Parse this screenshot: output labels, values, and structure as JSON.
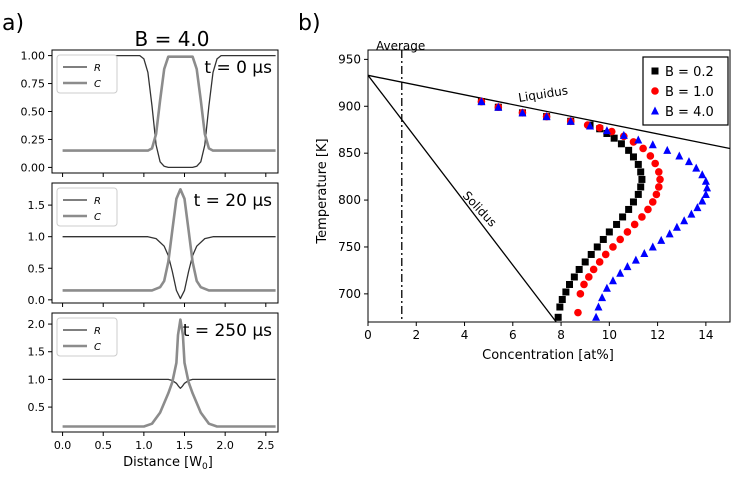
{
  "panel_a": {
    "label": "a)",
    "title": "B = 4.0",
    "xlabel": "Distance [W",
    "xlabel_sub": "0",
    "xlabel_end": "]",
    "x_ticks": [
      "0.0",
      "0.5",
      "1.0",
      "1.5",
      "2.0",
      "2.5"
    ],
    "x_tick_values": [
      0.0,
      0.5,
      1.0,
      1.5,
      2.0,
      2.5
    ],
    "xlim": [
      -0.13,
      2.65
    ]
  },
  "panel_b": {
    "label": "b)",
    "average_label": "Average",
    "liquidus_label": "Liquidus",
    "solidus_label": "Solidus",
    "xlabel": "Concentration [at%]",
    "ylabel": "Temperature [K]"
  },
  "colors": {
    "R_line": "#333333",
    "C_line": "#8c8c8c",
    "B02": "#000000",
    "B10": "#ff0000",
    "B40": "#0000ff"
  },
  "chart_data": [
    {
      "type": "line",
      "title": "t = 0 µs",
      "legend": [
        "R",
        "C"
      ],
      "ylim": [
        -0.05,
        1.05
      ],
      "y_ticks": [
        "0.00",
        "0.25",
        "0.50",
        "0.75",
        "1.00"
      ],
      "y_tick_values": [
        0,
        0.25,
        0.5,
        0.75,
        1.0
      ],
      "series": [
        {
          "name": "R",
          "x": [
            0,
            0.95,
            1.0,
            1.05,
            1.1,
            1.15,
            1.2,
            1.25,
            1.3,
            1.6,
            1.65,
            1.7,
            1.75,
            1.8,
            1.85,
            1.9,
            1.95,
            2.62
          ],
          "y": [
            1.0,
            1.0,
            0.97,
            0.85,
            0.55,
            0.2,
            0.05,
            0.01,
            0.0,
            0.0,
            0.01,
            0.05,
            0.2,
            0.55,
            0.85,
            0.97,
            1.0,
            1.0
          ]
        },
        {
          "name": "C",
          "x": [
            0,
            1.05,
            1.1,
            1.15,
            1.2,
            1.25,
            1.3,
            1.6,
            1.65,
            1.7,
            1.75,
            1.8,
            1.85,
            2.62
          ],
          "y": [
            0.15,
            0.15,
            0.17,
            0.3,
            0.6,
            0.88,
            0.99,
            0.99,
            0.88,
            0.6,
            0.3,
            0.17,
            0.15,
            0.15
          ]
        }
      ]
    },
    {
      "type": "line",
      "title": "t = 20 µs",
      "legend": [
        "R",
        "C"
      ],
      "ylim": [
        -0.05,
        1.85
      ],
      "y_ticks": [
        "0.0",
        "0.5",
        "1.0",
        "1.5"
      ],
      "y_tick_values": [
        0,
        0.5,
        1.0,
        1.5
      ],
      "series": [
        {
          "name": "R",
          "x": [
            0,
            1.05,
            1.15,
            1.25,
            1.3,
            1.35,
            1.4,
            1.45,
            1.5,
            1.55,
            1.6,
            1.65,
            1.75,
            1.85,
            2.62
          ],
          "y": [
            1.0,
            1.0,
            0.97,
            0.85,
            0.7,
            0.45,
            0.15,
            0.02,
            0.15,
            0.45,
            0.7,
            0.85,
            0.97,
            1.0,
            1.0
          ]
        },
        {
          "name": "C",
          "x": [
            0,
            1.1,
            1.2,
            1.25,
            1.3,
            1.35,
            1.4,
            1.45,
            1.5,
            1.55,
            1.6,
            1.65,
            1.7,
            1.8,
            2.62
          ],
          "y": [
            0.15,
            0.15,
            0.2,
            0.3,
            0.6,
            1.1,
            1.6,
            1.75,
            1.6,
            1.1,
            0.6,
            0.3,
            0.2,
            0.15,
            0.15
          ]
        }
      ]
    },
    {
      "type": "line",
      "title": "t = 250 µs",
      "legend": [
        "R",
        "C"
      ],
      "ylim": [
        0.05,
        2.2
      ],
      "y_ticks": [
        "0.5",
        "1.0",
        "1.5",
        "2.0"
      ],
      "y_tick_values": [
        0.5,
        1.0,
        1.5,
        2.0
      ],
      "series": [
        {
          "name": "R",
          "x": [
            0,
            1.3,
            1.35,
            1.4,
            1.43,
            1.45,
            1.47,
            1.5,
            1.55,
            1.6,
            2.62
          ],
          "y": [
            1.0,
            1.0,
            0.98,
            0.93,
            0.87,
            0.84,
            0.87,
            0.93,
            0.98,
            1.0,
            1.0
          ]
        },
        {
          "name": "C",
          "x": [
            0,
            1.0,
            1.1,
            1.2,
            1.3,
            1.35,
            1.4,
            1.42,
            1.45,
            1.48,
            1.5,
            1.55,
            1.6,
            1.7,
            1.8,
            1.9,
            2.62
          ],
          "y": [
            0.15,
            0.15,
            0.2,
            0.4,
            0.75,
            0.95,
            1.3,
            1.8,
            2.08,
            1.8,
            1.3,
            0.95,
            0.75,
            0.4,
            0.2,
            0.15,
            0.15
          ]
        }
      ]
    },
    {
      "type": "scatter",
      "xlabel": "Concentration [at%]",
      "ylabel": "Temperature [K]",
      "xlim": [
        0,
        15
      ],
      "ylim": [
        670,
        960
      ],
      "x_ticks": [
        "0",
        "2",
        "4",
        "6",
        "8",
        "10",
        "12",
        "14"
      ],
      "x_tick_values": [
        0,
        2,
        4,
        6,
        8,
        10,
        12,
        14
      ],
      "y_ticks": [
        "700",
        "750",
        "800",
        "850",
        "900",
        "950"
      ],
      "y_tick_values": [
        700,
        750,
        800,
        850,
        900,
        950
      ],
      "average_x": 1.4,
      "liquidus": {
        "x": [
          0,
          15
        ],
        "y": [
          933,
          855
        ]
      },
      "solidus": {
        "x": [
          0,
          7.8
        ],
        "y": [
          933,
          670
        ]
      },
      "series": [
        {
          "name": "B = 0.2",
          "marker": "square",
          "x": [
            4.7,
            5.4,
            6.4,
            7.4,
            8.4,
            9.2,
            9.6,
            9.9,
            10.2,
            10.5,
            10.8,
            11.0,
            11.2,
            11.3,
            11.35,
            11.3,
            11.2,
            11.0,
            10.8,
            10.55,
            10.3,
            10.0,
            9.75,
            9.5,
            9.25,
            9.0,
            8.75,
            8.55,
            8.35,
            8.2,
            8.05,
            7.95,
            7.88
          ],
          "y": [
            905,
            899,
            893,
            889,
            884,
            880,
            876,
            871,
            866,
            860,
            853,
            846,
            838,
            830,
            822,
            814,
            806,
            798,
            790,
            782,
            774,
            766,
            758,
            750,
            742,
            734,
            726,
            718,
            710,
            702,
            694,
            686,
            675
          ]
        },
        {
          "name": "B = 1.0",
          "marker": "circle",
          "x": [
            4.7,
            5.4,
            6.4,
            7.4,
            8.4,
            9.1,
            9.6,
            10.1,
            10.6,
            11.0,
            11.4,
            11.7,
            11.9,
            12.05,
            12.1,
            12.05,
            11.95,
            11.8,
            11.6,
            11.35,
            11.05,
            10.75,
            10.45,
            10.15,
            9.85,
            9.6,
            9.35,
            9.15,
            8.95,
            8.8,
            8.7
          ],
          "y": [
            905,
            899,
            893,
            889,
            884,
            880,
            877,
            873,
            868,
            862,
            855,
            847,
            839,
            830,
            822,
            814,
            806,
            798,
            790,
            782,
            774,
            766,
            758,
            750,
            742,
            734,
            726,
            718,
            710,
            700,
            680
          ]
        },
        {
          "name": "B = 4.0",
          "marker": "triangle",
          "x": [
            4.7,
            5.4,
            6.4,
            7.4,
            8.4,
            9.2,
            9.9,
            10.6,
            11.2,
            11.8,
            12.4,
            12.9,
            13.3,
            13.6,
            13.85,
            14.0,
            14.05,
            14.0,
            13.85,
            13.65,
            13.4,
            13.1,
            12.8,
            12.5,
            12.15,
            11.8,
            11.45,
            11.1,
            10.75,
            10.45,
            10.15,
            9.9,
            9.7,
            9.55,
            9.45
          ],
          "y": [
            905,
            899,
            893,
            889,
            884,
            879,
            874,
            869,
            864,
            859,
            853,
            847,
            841,
            834,
            827,
            820,
            813,
            806,
            799,
            792,
            785,
            778,
            771,
            764,
            757,
            750,
            743,
            736,
            729,
            722,
            714,
            706,
            696,
            686,
            675
          ]
        }
      ],
      "legend": [
        "B = 0.2",
        "B = 1.0",
        "B = 4.0"
      ]
    }
  ]
}
